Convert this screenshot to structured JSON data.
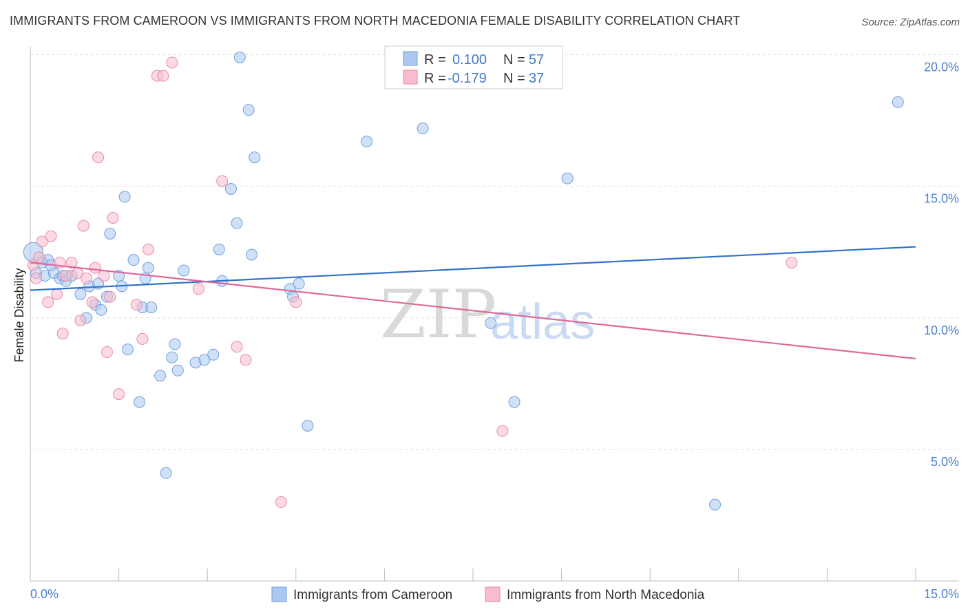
{
  "title": "IMMIGRANTS FROM CAMEROON VS IMMIGRANTS FROM NORTH MACEDONIA FEMALE DISABILITY CORRELATION CHART",
  "source": "Source: ZipAtlas.com",
  "watermark": {
    "zip": "ZIP",
    "atlas": "atlas"
  },
  "colors": {
    "blue_fill": "#aac8f0",
    "blue_stroke": "#6f9fdc",
    "blue_line": "#2f72c8",
    "pink_fill": "#f7bccd",
    "pink_stroke": "#e98aa8",
    "pink_line": "#e0679a",
    "tick_text": "#4a7fcf",
    "grid": "#dddddd"
  },
  "legend": {
    "rows": [
      {
        "r_label": "R =",
        "r_value": "0.100",
        "n_label": "N =",
        "n_value": "57"
      },
      {
        "r_label": "R =",
        "r_value": "-0.179",
        "n_label": "N =",
        "n_value": "37"
      }
    ]
  },
  "chart_data": {
    "type": "scatter",
    "title": "IMMIGRANTS FROM CAMEROON VS IMMIGRANTS FROM NORTH MACEDONIA FEMALE DISABILITY CORRELATION CHART",
    "xlabel": "",
    "ylabel": "Female Disability",
    "xlim": [
      0,
      15
    ],
    "ylim": [
      0,
      20.5
    ],
    "x_tick_labels": [
      "0.0%",
      "15.0%"
    ],
    "y_ticks": [
      5,
      10,
      15,
      20
    ],
    "y_tick_labels": [
      "5.0%",
      "10.0%",
      "15.0%",
      "20.0%"
    ],
    "grid": true,
    "legend_position": "top-center",
    "series": [
      {
        "name": "Immigrants from Cameroon",
        "color": "#aac8f0",
        "trend": {
          "x": [
            0,
            15
          ],
          "y": [
            11.05,
            12.7
          ]
        },
        "points": [
          [
            0.05,
            12.5
          ],
          [
            0.1,
            11.7
          ],
          [
            0.2,
            12.1
          ],
          [
            0.25,
            11.6
          ],
          [
            0.3,
            12.2
          ],
          [
            0.4,
            11.7
          ],
          [
            0.5,
            11.5
          ],
          [
            0.55,
            11.6
          ],
          [
            0.6,
            11.4
          ],
          [
            0.7,
            11.6
          ],
          [
            0.85,
            10.9
          ],
          [
            0.95,
            10.0
          ],
          [
            1.0,
            11.2
          ],
          [
            1.1,
            10.5
          ],
          [
            1.15,
            11.3
          ],
          [
            1.2,
            10.3
          ],
          [
            1.3,
            10.8
          ],
          [
            1.35,
            13.2
          ],
          [
            1.5,
            11.6
          ],
          [
            1.55,
            11.2
          ],
          [
            1.6,
            14.6
          ],
          [
            1.65,
            8.8
          ],
          [
            1.75,
            12.2
          ],
          [
            1.85,
            6.8
          ],
          [
            1.9,
            10.4
          ],
          [
            1.95,
            11.5
          ],
          [
            2.0,
            11.9
          ],
          [
            2.05,
            10.4
          ],
          [
            2.2,
            7.8
          ],
          [
            2.3,
            4.1
          ],
          [
            2.4,
            8.5
          ],
          [
            2.45,
            9.0
          ],
          [
            2.5,
            8.0
          ],
          [
            2.6,
            11.8
          ],
          [
            2.8,
            8.3
          ],
          [
            2.95,
            8.4
          ],
          [
            3.1,
            8.6
          ],
          [
            3.2,
            12.6
          ],
          [
            3.25,
            11.4
          ],
          [
            3.4,
            14.9
          ],
          [
            3.5,
            13.6
          ],
          [
            3.55,
            19.9
          ],
          [
            3.7,
            17.9
          ],
          [
            3.75,
            12.4
          ],
          [
            3.8,
            16.1
          ],
          [
            4.4,
            11.1
          ],
          [
            4.45,
            10.8
          ],
          [
            4.55,
            11.3
          ],
          [
            4.7,
            5.9
          ],
          [
            5.7,
            16.7
          ],
          [
            6.65,
            17.2
          ],
          [
            7.8,
            9.8
          ],
          [
            8.2,
            6.8
          ],
          [
            9.1,
            15.3
          ],
          [
            11.6,
            2.9
          ],
          [
            14.7,
            18.2
          ],
          [
            0.35,
            12.0
          ]
        ]
      },
      {
        "name": "Immigrants from North Macedonia",
        "color": "#f7bccd",
        "trend": {
          "x": [
            0,
            15
          ],
          "y": [
            12.1,
            8.45
          ]
        },
        "points": [
          [
            0.05,
            12.0
          ],
          [
            0.1,
            11.5
          ],
          [
            0.15,
            12.3
          ],
          [
            0.2,
            12.9
          ],
          [
            0.3,
            10.6
          ],
          [
            0.35,
            13.1
          ],
          [
            0.45,
            10.9
          ],
          [
            0.5,
            12.1
          ],
          [
            0.55,
            9.4
          ],
          [
            0.6,
            11.6
          ],
          [
            0.7,
            12.1
          ],
          [
            0.8,
            11.7
          ],
          [
            0.85,
            9.9
          ],
          [
            0.9,
            13.5
          ],
          [
            0.95,
            11.5
          ],
          [
            1.05,
            10.6
          ],
          [
            1.1,
            11.9
          ],
          [
            1.15,
            16.1
          ],
          [
            1.25,
            11.6
          ],
          [
            1.3,
            8.7
          ],
          [
            1.35,
            10.8
          ],
          [
            1.4,
            13.8
          ],
          [
            1.5,
            7.1
          ],
          [
            1.8,
            10.5
          ],
          [
            1.9,
            9.2
          ],
          [
            2.0,
            12.6
          ],
          [
            2.15,
            19.2
          ],
          [
            2.25,
            19.2
          ],
          [
            2.4,
            19.7
          ],
          [
            2.85,
            11.1
          ],
          [
            3.25,
            15.2
          ],
          [
            3.5,
            8.9
          ],
          [
            3.65,
            8.4
          ],
          [
            4.25,
            3.0
          ],
          [
            4.5,
            10.6
          ],
          [
            8.0,
            5.7
          ],
          [
            12.9,
            12.1
          ]
        ]
      }
    ]
  },
  "bottom_legend": [
    {
      "label": "Immigrants from Cameroon"
    },
    {
      "label": "Immigrants from North Macedonia"
    }
  ]
}
